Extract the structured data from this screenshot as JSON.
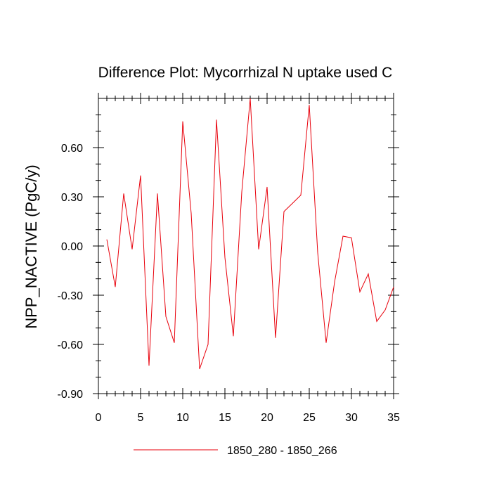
{
  "chart_data": {
    "type": "line",
    "title": "Difference Plot: Mycorrhizal N uptake used C",
    "xlabel": "",
    "ylabel": "NPP_NACTIVE  (PgC/y)",
    "xlim": [
      0,
      35
    ],
    "ylim": [
      -0.9,
      0.9
    ],
    "x_ticks": [
      0,
      5,
      10,
      15,
      20,
      25,
      30,
      35
    ],
    "x_tick_labels": [
      "0",
      "5",
      "10",
      "15",
      "20",
      "25",
      "30",
      "35"
    ],
    "y_ticks": [
      -0.9,
      -0.6,
      -0.3,
      0.0,
      0.3,
      0.6
    ],
    "y_tick_labels": [
      "-0.90",
      "-0.60",
      "-0.30",
      "0.00",
      "0.30",
      "0.60"
    ],
    "grid": false,
    "legend_position": "bottom-center",
    "series": [
      {
        "name": "1850_280 - 1850_266",
        "color": "#e8000b",
        "x": [
          1,
          2,
          3,
          4,
          5,
          6,
          7,
          8,
          9,
          10,
          11,
          12,
          13,
          14,
          15,
          16,
          17,
          18,
          19,
          20,
          21,
          22,
          23,
          24,
          25,
          26,
          27,
          28,
          29,
          30,
          31,
          32,
          33,
          34,
          35
        ],
        "values": [
          0.04,
          -0.25,
          0.32,
          -0.02,
          0.43,
          -0.73,
          0.32,
          -0.43,
          -0.59,
          0.76,
          0.2,
          -0.75,
          -0.6,
          0.77,
          -0.07,
          -0.55,
          0.33,
          0.9,
          -0.02,
          0.36,
          -0.56,
          0.21,
          0.26,
          0.31,
          0.86,
          -0.04,
          -0.59,
          -0.22,
          0.06,
          0.05,
          -0.28,
          -0.17,
          -0.46,
          -0.39,
          -0.25
        ]
      }
    ]
  }
}
